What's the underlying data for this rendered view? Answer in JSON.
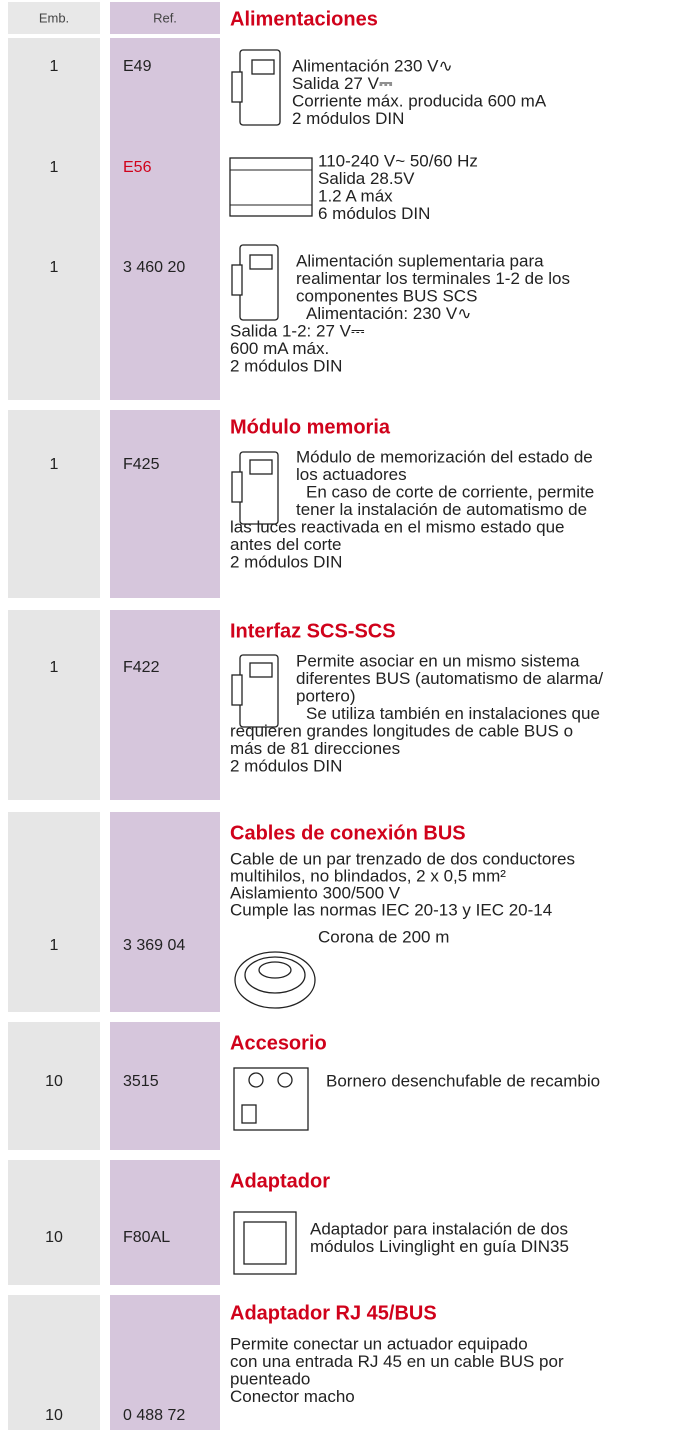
{
  "header": {
    "emb": "Emb.",
    "ref": "Ref."
  },
  "sections": [
    {
      "title": "Alimentaciones",
      "items": [
        {
          "emb": "1",
          "ref": "E49",
          "lines": [
            "Alimentación 230 V∿",
            "Salida 27 V⎓",
            "Corriente máx. producida 600 mA",
            "2 módulos DIN"
          ]
        },
        {
          "emb": "1",
          "ref": "E56",
          "lines": [
            "110-240 V~ 50/60 Hz",
            "Salida 28.5V",
            "1.2 A máx",
            "6 módulos DIN"
          ]
        },
        {
          "emb": "1",
          "ref": "3 460 20",
          "lines": [
            "Alimentación suplementaria para",
            "realimentar los terminales 1-2 de los",
            "componentes BUS SCS",
            "Alimentación: 230 V∿",
            "Salida 1-2: 27 V⎓",
            "600 mA máx.",
            "2 módulos DIN"
          ]
        }
      ]
    },
    {
      "title": "Módulo memoria",
      "items": [
        {
          "emb": "1",
          "ref": "F425",
          "lines": [
            "Módulo de memorización del estado de",
            "los actuadores",
            "En caso de corte de corriente, permite",
            "tener la instalación de automatismo de",
            "las luces reactivada en el mismo estado que",
            "antes del corte",
            "2 módulos DIN"
          ]
        }
      ]
    },
    {
      "title": "Interfaz SCS-SCS",
      "items": [
        {
          "emb": "1",
          "ref": "F422",
          "lines": [
            "Permite asociar en un mismo sistema",
            "diferentes BUS (automatismo de alarma/",
            "portero)",
            "Se utiliza también en instalaciones que",
            "requieren grandes longitudes de cable BUS o",
            "más de 81 direcciones",
            "2 módulos DIN"
          ]
        }
      ]
    },
    {
      "title": "Cables de conexión BUS",
      "items": [
        {
          "emb": "1",
          "ref": "3 369 04",
          "lines": [
            "Cable de un par trenzado de dos conductores",
            "multihilos, no blindados, 2 x 0,5 mm²",
            "Aislamiento 300/500 V",
            "Cumple las normas IEC 20-13 y IEC 20-14",
            "Corona de 200 m"
          ]
        }
      ]
    },
    {
      "title": "Accesorio",
      "items": [
        {
          "emb": "10",
          "ref": "3515",
          "lines": [
            "Bornero desenchufable de recambio"
          ]
        }
      ]
    },
    {
      "title": "Adaptador",
      "items": [
        {
          "emb": "10",
          "ref": "F80AL",
          "lines": [
            "Adaptador para instalación de dos",
            "módulos Livinglight en guía DIN35"
          ]
        }
      ]
    },
    {
      "title": "Adaptador RJ 45/BUS",
      "items": [
        {
          "emb": "10",
          "ref": "0 488 72",
          "lines": [
            "Permite conectar un actuador equipado",
            "con una entrada RJ 45 en un cable BUS por",
            "puenteado",
            "Conector macho"
          ]
        }
      ]
    }
  ]
}
